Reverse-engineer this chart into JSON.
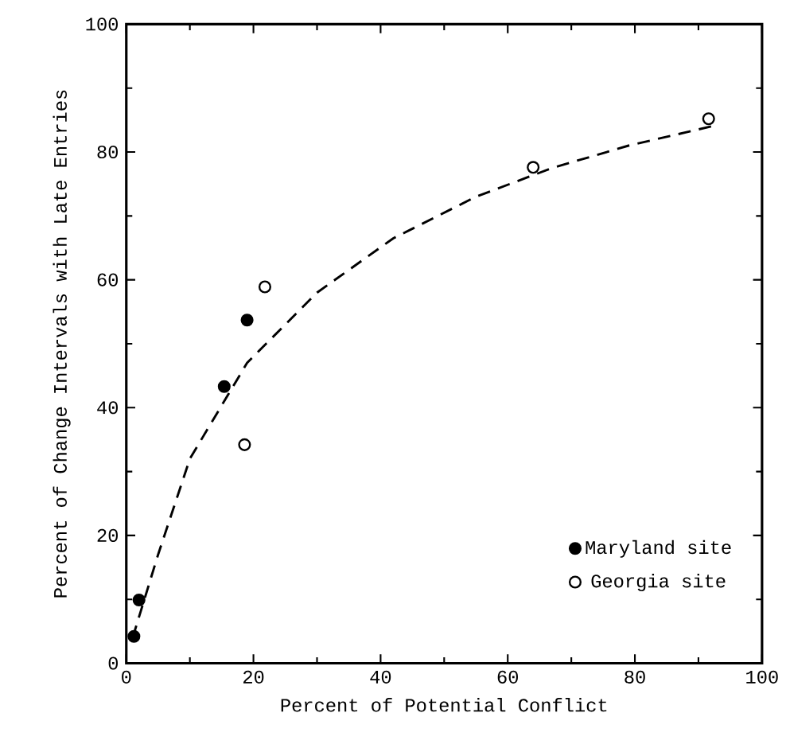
{
  "chart_data": {
    "type": "scatter",
    "xlabel": "Percent of Potential Conflict",
    "ylabel": "Percent of Change Intervals with Late Entries",
    "xlim": [
      0,
      100
    ],
    "ylim": [
      0,
      100
    ],
    "xticks": [
      0,
      20,
      40,
      60,
      80,
      100
    ],
    "yticks": [
      0,
      20,
      40,
      60,
      80,
      100
    ],
    "marker": "circle",
    "legend": "bottom right",
    "grid": false,
    "series": [
      {
        "name": "Maryland site",
        "color": "#000000",
        "x": [
          1.2,
          2,
          15.4,
          19
        ],
        "values": [
          4.2,
          9.9,
          43.3,
          53.7
        ]
      },
      {
        "name": "Georgia site",
        "color": "#ffffff",
        "x": [
          18.6,
          21.8,
          64,
          91.6
        ],
        "values": [
          34.2,
          58.9,
          77.6,
          85.2
        ]
      },
      {
        "type": "line",
        "color": "#000000",
        "marker": "none",
        "line_style": "dashed",
        "x": [
          1,
          5,
          10,
          19,
          30,
          42,
          55,
          67,
          79,
          92
        ],
        "values": [
          4,
          17,
          32,
          47,
          58,
          66.5,
          73,
          77.5,
          81,
          84
        ]
      }
    ]
  }
}
